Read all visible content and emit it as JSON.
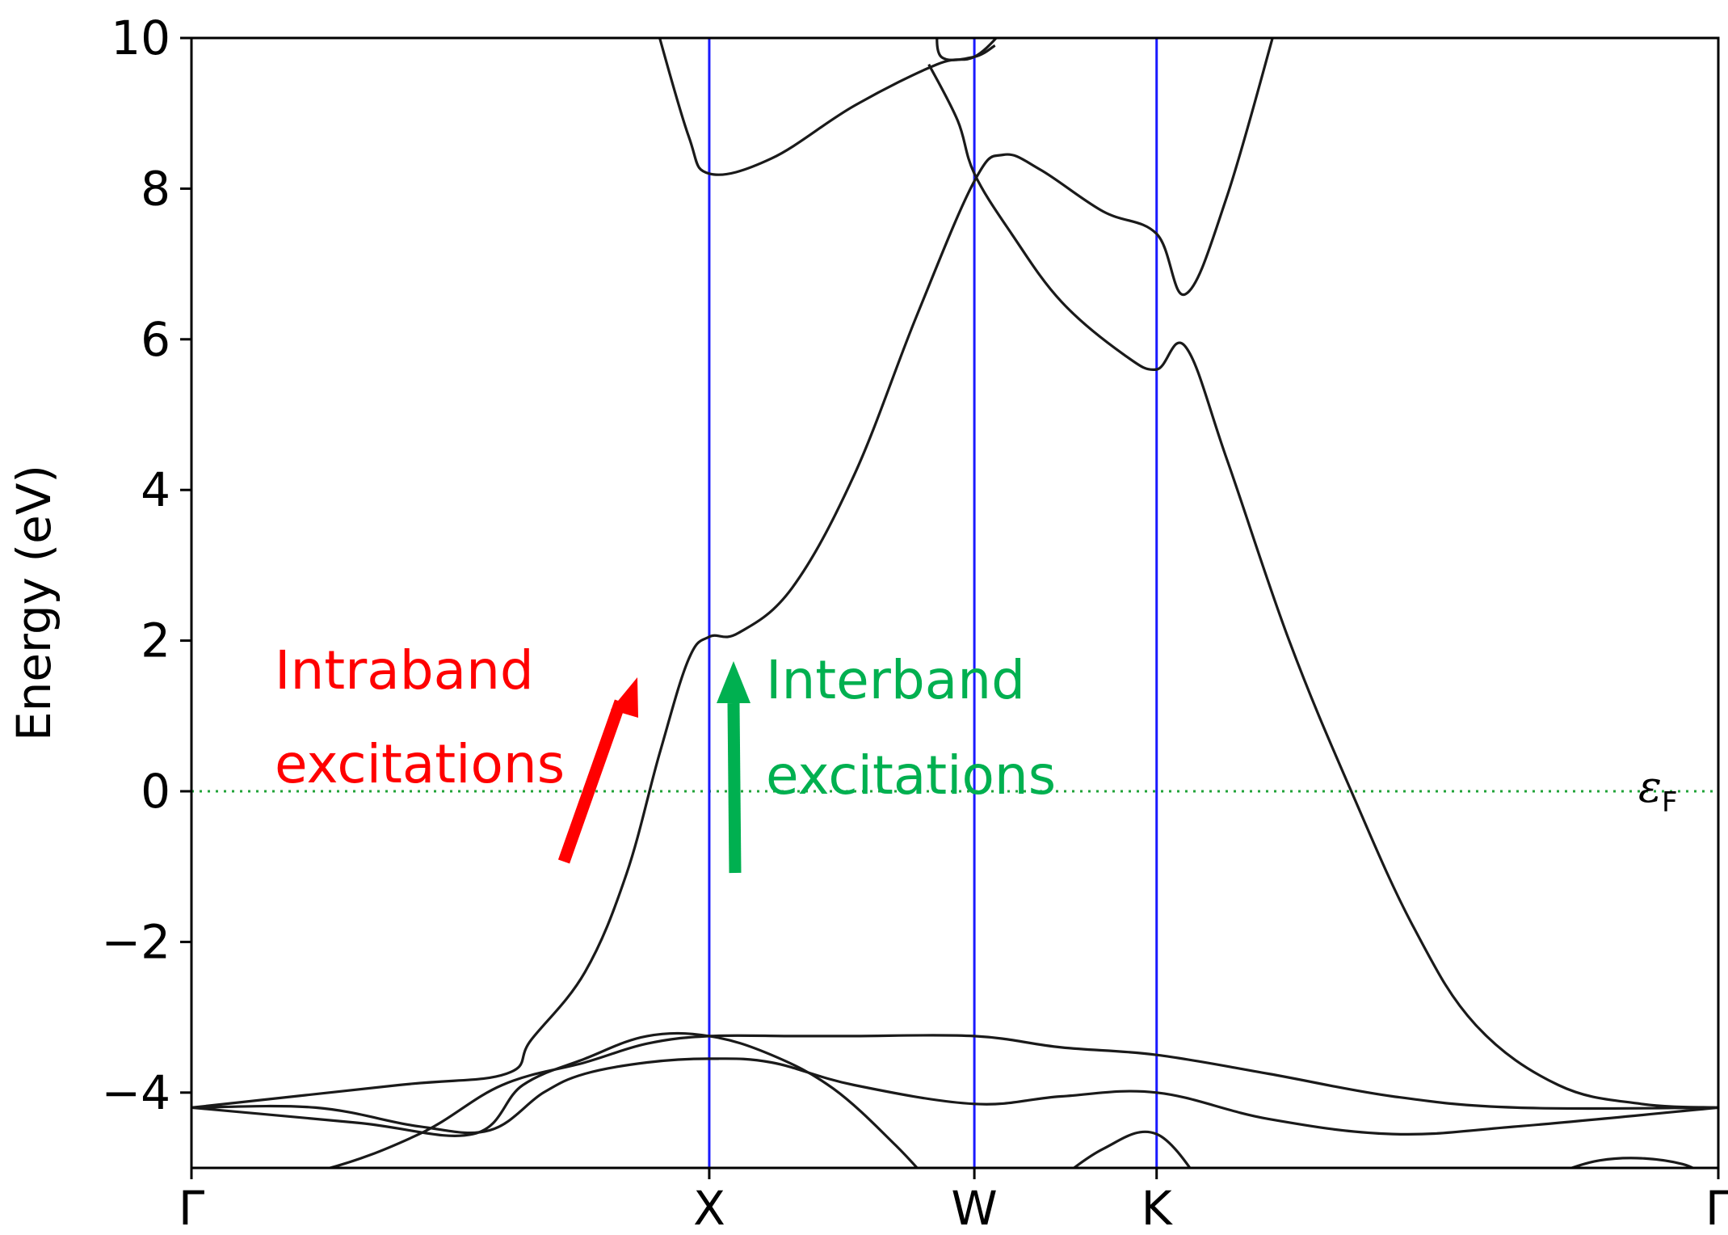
{
  "chart_data": {
    "type": "line",
    "ylabel": "Energy (eV)",
    "ylim": [
      -5,
      10
    ],
    "xlim": [
      0,
      3.686
    ],
    "yticks": [
      -4,
      -2,
      0,
      2,
      4,
      6,
      8,
      10
    ],
    "yticklabels": [
      "−4",
      "−2",
      "0",
      "2",
      "4",
      "6",
      "8",
      "10"
    ],
    "high_symmetry_points": [
      {
        "label": "Γ",
        "x": 0
      },
      {
        "label": "X",
        "x": 1.25
      },
      {
        "label": "W",
        "x": 1.89
      },
      {
        "label": "K",
        "x": 2.33
      },
      {
        "label": "Γ",
        "x": 3.686
      }
    ],
    "vline_color": "#1a1aff",
    "band_color": "#1a1a1a",
    "fermi_level": {
      "value": 0,
      "color": "#22a33a",
      "label": "ε",
      "label_sub": "F"
    },
    "series": [
      {
        "values": [
          [
            0,
            -5.3
          ],
          [
            0.3,
            -5.05
          ],
          [
            0.55,
            -4.55
          ],
          [
            0.75,
            -3.9
          ],
          [
            0.95,
            -3.6
          ],
          [
            1.1,
            -3.35
          ],
          [
            1.25,
            -3.25
          ],
          [
            1.45,
            -3.25
          ],
          [
            1.6,
            -3.25
          ],
          [
            1.89,
            -3.25
          ],
          [
            2.1,
            -3.4
          ],
          [
            2.33,
            -3.5
          ],
          [
            2.6,
            -3.75
          ],
          [
            2.9,
            -4.05
          ],
          [
            3.2,
            -4.2
          ],
          [
            3.686,
            -4.2
          ]
        ]
      },
      {
        "values": [
          [
            0,
            -4.2
          ],
          [
            0.3,
            -4.2
          ],
          [
            0.55,
            -4.45
          ],
          [
            0.72,
            -4.5
          ],
          [
            0.85,
            -4.0
          ],
          [
            0.95,
            -3.75
          ],
          [
            1.1,
            -3.6
          ],
          [
            1.25,
            -3.55
          ],
          [
            1.4,
            -3.6
          ],
          [
            1.6,
            -3.9
          ],
          [
            1.89,
            -4.15
          ],
          [
            2.1,
            -4.05
          ],
          [
            2.33,
            -4.0
          ],
          [
            2.6,
            -4.35
          ],
          [
            2.9,
            -4.55
          ],
          [
            3.2,
            -4.45
          ],
          [
            3.686,
            -4.2
          ]
        ]
      },
      {
        "values": [
          [
            0,
            -4.2
          ],
          [
            0.5,
            -3.9
          ],
          [
            0.76,
            -3.75
          ],
          [
            0.82,
            -3.3
          ],
          [
            0.95,
            -2.4
          ],
          [
            1.05,
            -1.1
          ],
          [
            1.13,
            0.5
          ],
          [
            1.2,
            1.75
          ],
          [
            1.25,
            2.05
          ],
          [
            1.32,
            2.1
          ],
          [
            1.45,
            2.7
          ],
          [
            1.6,
            4.2
          ],
          [
            1.75,
            6.3
          ],
          [
            1.89,
            8.1
          ],
          [
            1.96,
            8.45
          ],
          [
            2.05,
            8.25
          ],
          [
            2.2,
            7.7
          ],
          [
            2.33,
            7.4
          ],
          [
            2.4,
            6.6
          ],
          [
            2.5,
            7.9
          ],
          [
            2.62,
            10.2
          ]
        ]
      },
      {
        "values": [
          [
            0,
            -4.2
          ],
          [
            0.4,
            -4.4
          ],
          [
            0.68,
            -4.55
          ],
          [
            0.8,
            -3.9
          ],
          [
            0.95,
            -3.55
          ],
          [
            1.1,
            -3.25
          ],
          [
            1.25,
            -3.25
          ],
          [
            1.4,
            -3.5
          ],
          [
            1.55,
            -3.95
          ],
          [
            1.7,
            -4.7
          ],
          [
            1.8,
            -5.3
          ]
        ]
      },
      {
        "values": [
          [
            2.06,
            -5.3
          ],
          [
            2.2,
            -4.75
          ],
          [
            2.33,
            -4.55
          ],
          [
            2.45,
            -5.3
          ]
        ]
      },
      {
        "values": [
          [
            1.12,
            10.2
          ],
          [
            1.2,
            8.7
          ],
          [
            1.25,
            8.2
          ],
          [
            1.4,
            8.4
          ],
          [
            1.6,
            9.1
          ],
          [
            1.8,
            9.65
          ],
          [
            1.89,
            9.75
          ],
          [
            1.96,
            10.1
          ]
        ]
      },
      {
        "values": [
          [
            1.8,
            10.2
          ],
          [
            1.81,
            9.75
          ],
          [
            1.89,
            9.75
          ],
          [
            1.94,
            9.9
          ]
        ]
      },
      {
        "values": [
          [
            1.78,
            9.65
          ],
          [
            1.85,
            8.9
          ],
          [
            1.89,
            8.2
          ],
          [
            1.98,
            7.4
          ],
          [
            2.1,
            6.5
          ],
          [
            2.25,
            5.8
          ],
          [
            2.33,
            5.6
          ],
          [
            2.4,
            5.9
          ],
          [
            2.5,
            4.4
          ],
          [
            2.65,
            2.0
          ],
          [
            2.8,
            0.0
          ],
          [
            2.95,
            -1.8
          ],
          [
            3.1,
            -3.1
          ],
          [
            3.3,
            -3.9
          ],
          [
            3.5,
            -4.15
          ],
          [
            3.686,
            -4.2
          ]
        ]
      },
      {
        "values": [
          [
            3.2,
            -5.3
          ],
          [
            3.4,
            -4.9
          ],
          [
            3.6,
            -4.95
          ],
          [
            3.686,
            -5.3
          ]
        ]
      }
    ],
    "annotations": [
      {
        "lines": [
          "Intraband",
          "excitations"
        ],
        "color": "#ff0000"
      },
      {
        "lines": [
          "Interband",
          "excitations"
        ],
        "color": "#00b050"
      }
    ]
  }
}
